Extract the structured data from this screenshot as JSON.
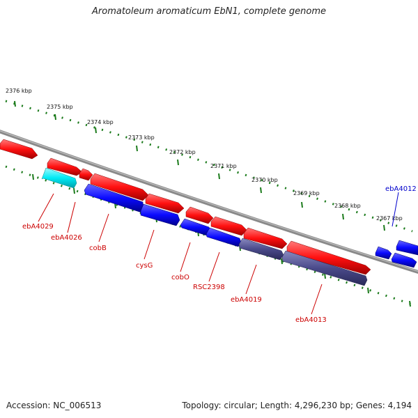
{
  "title": "Aromatoleum aromaticum EbN1, complete genome",
  "footer": {
    "accession": "Accession: NC_006513",
    "summary": "Topology: circular; Length: 4,296,230 bp; Genes: 4,194"
  },
  "colors": {
    "forward_strand": "#ff0000",
    "reverse_strand": "#0000ff",
    "rna": "#00e5ee",
    "pseudo": "#4b4b8f",
    "backbone": "#8a8a8a",
    "ruler": "#1a7a1a",
    "label_forward": "#cc0000",
    "label_reverse": "#0000cc"
  },
  "ruler_labels": [
    "2376 kbp",
    "2375 kbp",
    "2374 kbp",
    "2373 kbp",
    "2372 kbp",
    "2371 kbp",
    "2370 kbp",
    "2369 kbp",
    "2368 kbp",
    "2367 kbp"
  ],
  "gene_labels": [
    "ebA4029",
    "ebA4026",
    "cobB",
    "cysG",
    "cobO",
    "RSC2398",
    "ebA4019",
    "ebA4013",
    "ebA4012"
  ]
}
